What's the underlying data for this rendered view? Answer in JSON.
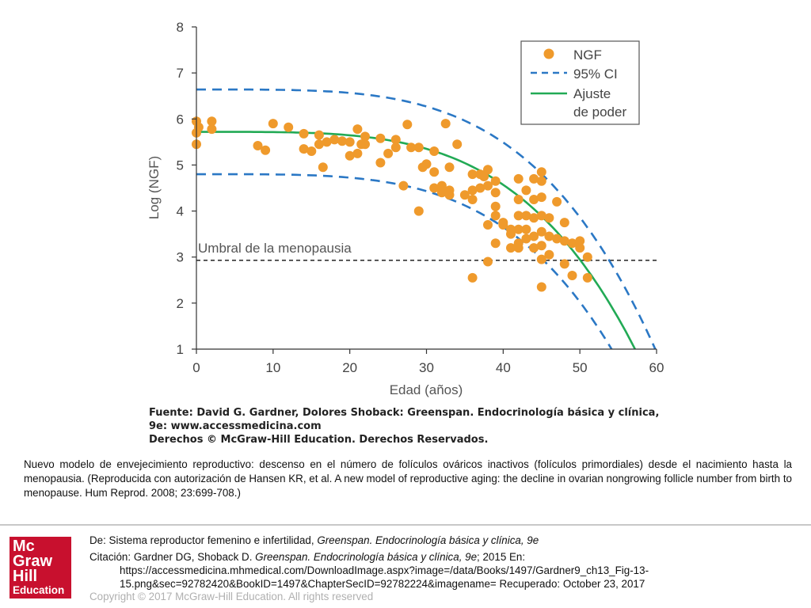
{
  "chart_data": {
    "type": "scatter",
    "xlabel": "Edad (años)",
    "ylabel": "Log (NGF)",
    "xlim": [
      0,
      60
    ],
    "ylim": [
      1,
      8
    ],
    "xticks": [
      "0",
      "10",
      "20",
      "30",
      "40",
      "50",
      "60"
    ],
    "yticks": [
      "1",
      "2",
      "3",
      "4",
      "5",
      "6",
      "7",
      "8"
    ],
    "legend": {
      "position": "top-right",
      "entries": [
        {
          "label": "NGF"
        },
        {
          "label": "95% CI"
        },
        {
          "label": "Ajuste",
          "label_line2": "de poder"
        }
      ]
    },
    "threshold": {
      "y": 2.93,
      "label": "Umbral de la menopausia"
    },
    "fit": {
      "a": 5.72,
      "b": 5.4e-07,
      "p": 3.95
    },
    "ci_offset": 0.92,
    "points": [
      [
        0,
        5.95
      ],
      [
        0,
        5.7
      ],
      [
        0,
        5.45
      ],
      [
        0.3,
        5.82
      ],
      [
        2,
        5.95
      ],
      [
        2,
        5.78
      ],
      [
        10,
        5.9
      ],
      [
        12,
        5.82
      ],
      [
        8,
        5.42
      ],
      [
        9,
        5.32
      ],
      [
        14,
        5.68
      ],
      [
        14,
        5.35
      ],
      [
        15,
        5.3
      ],
      [
        16,
        5.65
      ],
      [
        16,
        5.45
      ],
      [
        16.5,
        4.95
      ],
      [
        17,
        5.5
      ],
      [
        18,
        5.55
      ],
      [
        19,
        5.52
      ],
      [
        20,
        5.5
      ],
      [
        20,
        5.2
      ],
      [
        21,
        5.78
      ],
      [
        21,
        5.25
      ],
      [
        21.5,
        5.45
      ],
      [
        22,
        5.62
      ],
      [
        22,
        5.45
      ],
      [
        24,
        5.58
      ],
      [
        24,
        5.05
      ],
      [
        25,
        5.25
      ],
      [
        26,
        5.55
      ],
      [
        26,
        5.38
      ],
      [
        27,
        4.55
      ],
      [
        27.5,
        5.88
      ],
      [
        28,
        5.38
      ],
      [
        29,
        5.38
      ],
      [
        29,
        4.0
      ],
      [
        29.5,
        4.95
      ],
      [
        30,
        5.02
      ],
      [
        31,
        5.3
      ],
      [
        31,
        4.85
      ],
      [
        31,
        4.5
      ],
      [
        32,
        4.4
      ],
      [
        32,
        4.55
      ],
      [
        32.5,
        5.9
      ],
      [
        33,
        4.95
      ],
      [
        33,
        4.35
      ],
      [
        33,
        4.45
      ],
      [
        34,
        5.45
      ],
      [
        35,
        4.35
      ],
      [
        36,
        4.8
      ],
      [
        36,
        4.45
      ],
      [
        36,
        4.25
      ],
      [
        36,
        2.55
      ],
      [
        37,
        4.8
      ],
      [
        37,
        4.5
      ],
      [
        37.5,
        4.75
      ],
      [
        38,
        4.9
      ],
      [
        38,
        4.55
      ],
      [
        38,
        3.7
      ],
      [
        38,
        2.9
      ],
      [
        39,
        4.65
      ],
      [
        39,
        4.4
      ],
      [
        39,
        4.1
      ],
      [
        39,
        3.9
      ],
      [
        39,
        3.3
      ],
      [
        40,
        3.7
      ],
      [
        40,
        3.75
      ],
      [
        41,
        3.2
      ],
      [
        41,
        3.5
      ],
      [
        41,
        3.6
      ],
      [
        42,
        4.7
      ],
      [
        42,
        4.25
      ],
      [
        42,
        3.9
      ],
      [
        42,
        3.6
      ],
      [
        42,
        3.3
      ],
      [
        42,
        3.2
      ],
      [
        43,
        4.45
      ],
      [
        43,
        3.9
      ],
      [
        43,
        3.6
      ],
      [
        43,
        3.4
      ],
      [
        44,
        4.7
      ],
      [
        44,
        4.25
      ],
      [
        44,
        3.85
      ],
      [
        44,
        3.45
      ],
      [
        44,
        3.2
      ],
      [
        45,
        4.85
      ],
      [
        45,
        4.65
      ],
      [
        45,
        4.3
      ],
      [
        45,
        3.9
      ],
      [
        45,
        3.55
      ],
      [
        45,
        3.25
      ],
      [
        45,
        2.95
      ],
      [
        45,
        2.35
      ],
      [
        46,
        3.85
      ],
      [
        46,
        3.45
      ],
      [
        46,
        3.05
      ],
      [
        47,
        4.2
      ],
      [
        47,
        3.4
      ],
      [
        48,
        3.75
      ],
      [
        48,
        3.35
      ],
      [
        48,
        2.85
      ],
      [
        49,
        3.3
      ],
      [
        49,
        2.6
      ],
      [
        50,
        3.35
      ],
      [
        50,
        3.2
      ],
      [
        51,
        3.0
      ],
      [
        51,
        2.55
      ]
    ]
  },
  "source": {
    "line1": "Fuente: David G. Gardner, Dolores Shoback: Greenspan. Endocrinología básica y clínica,",
    "line2": "9e: www.accessmedicina.com",
    "line3": "Derechos © McGraw-Hill Education. Derechos Reservados."
  },
  "caption": "Nuevo modelo de envejecimiento reproductivo: descenso en el número de folículos ováricos inactivos (folículos primordiales) desde el nacimiento hasta la menopausia. (Reproducida con autorización de Hansen KR, et al. A new model of reproductive aging: the decline in ovarian nongrowing follicle number from birth to menopause. Hum Reprod. 2008; 23:699-708.)",
  "logo": {
    "line1": "Mc",
    "line2": "Graw",
    "line3": "Hill",
    "line4": "Education"
  },
  "footer": {
    "from_prefix": "De: Sistema reproductor femenino e infertilidad, ",
    "from_book": "Greenspan. Endocrinología básica y clínica, 9e",
    "citation_prefix": "Citación: Gardner DG, Shoback D",
    "citation_sep": ". ",
    "citation_book": "Greenspan. Endocrinología básica y clínica, 9e",
    "citation_rest": "; 2015 En:",
    "url_line1": "https://accessmedicina.mhmedical.com/DownloadImage.aspx?image=/data/Books/1497/Gardner9_ch13_Fig-13-",
    "url_line2": "15.png&sec=92782420&BookID=1497&ChapterSecID=92782224&imagename= Recuperado: October 23, 2017",
    "copyright": "Copyright © 2017 McGraw-Hill Education. All rights reserved"
  }
}
